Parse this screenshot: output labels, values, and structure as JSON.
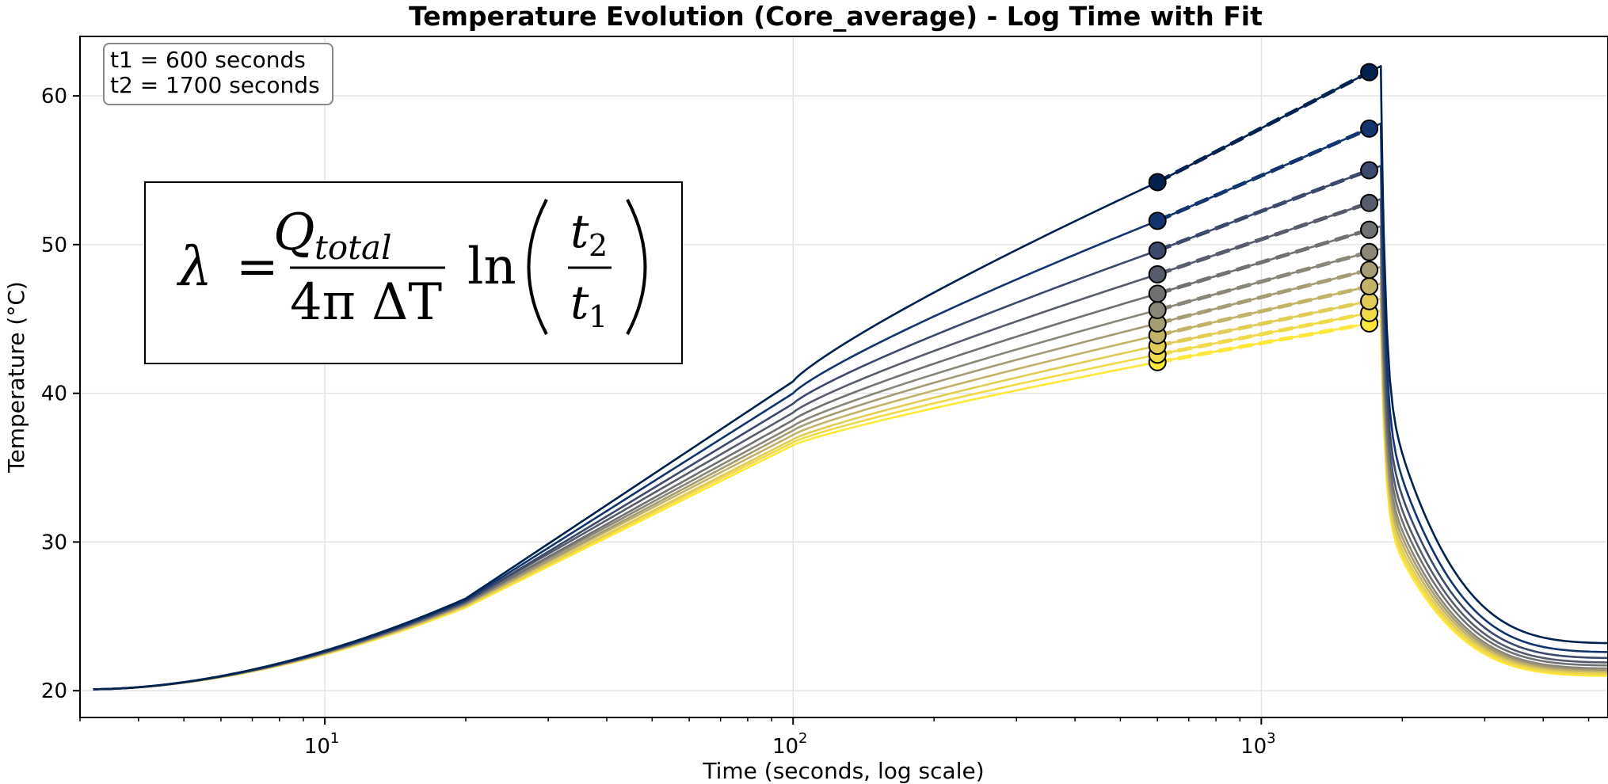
{
  "chart_data": {
    "type": "line",
    "title": "Temperature Evolution (Core_average) - Log Time with Fit",
    "xlabel": "Time (seconds, log scale)",
    "ylabel": "Temperature (°C)",
    "xscale": "log",
    "xlim": [
      3,
      5500
    ],
    "ylim": [
      18.2,
      64
    ],
    "x_ticks": [
      {
        "base": "10",
        "exp": "1",
        "value": 10
      },
      {
        "base": "10",
        "exp": "2",
        "value": 100
      },
      {
        "base": "10",
        "exp": "3",
        "value": 1000
      }
    ],
    "y_ticks": [
      20,
      30,
      40,
      50,
      60
    ],
    "grid": true,
    "legend": "none",
    "annotation_box": {
      "lines": [
        "t1 = 600 seconds",
        "t2 = 1700 seconds"
      ],
      "placement": "top-left"
    },
    "formula": {
      "lhs": "λ",
      "eq": "=",
      "num_var": "Q",
      "num_sub": "total",
      "den": "4π ΔT",
      "ln": "ln",
      "t2_var": "t",
      "t2_sub": "2",
      "t1_var": "t",
      "t1_sub": "1"
    },
    "t1": 600,
    "t2": 1700,
    "t_peak": 1800,
    "t_start": 3.2,
    "t_end": 5500,
    "T_start": 20.1,
    "series": [
      {
        "color": "#00224e",
        "T_t1": 54.2,
        "T_t2": 61.6,
        "T_end": 23.2,
        "T_at20": 26.2,
        "T_at100": 40.8,
        "fit": true
      },
      {
        "color": "#123570",
        "T_t1": 51.6,
        "T_t2": 57.8,
        "T_end": 22.6,
        "T_at20": 26.1,
        "T_at100": 40.0,
        "fit": true
      },
      {
        "color": "#3b496c",
        "T_t1": 49.6,
        "T_t2": 55.0,
        "T_end": 22.2,
        "T_at20": 26.0,
        "T_at100": 39.3,
        "fit": true
      },
      {
        "color": "#575c6d",
        "T_t1": 48.0,
        "T_t2": 52.8,
        "T_end": 21.9,
        "T_at20": 26.0,
        "T_at100": 38.7,
        "fit": true
      },
      {
        "color": "#707173",
        "T_t1": 46.7,
        "T_t2": 51.0,
        "T_end": 21.7,
        "T_at20": 25.9,
        "T_at100": 38.2,
        "fit": true
      },
      {
        "color": "#8a8779",
        "T_t1": 45.6,
        "T_t2": 49.5,
        "T_end": 21.5,
        "T_at20": 25.9,
        "T_at100": 37.8,
        "fit": true
      },
      {
        "color": "#a59c74",
        "T_t1": 44.7,
        "T_t2": 48.3,
        "T_end": 21.4,
        "T_at20": 25.8,
        "T_at100": 37.5,
        "fit": true
      },
      {
        "color": "#c3b369",
        "T_t1": 43.9,
        "T_t2": 47.2,
        "T_end": 21.3,
        "T_at20": 25.8,
        "T_at100": 37.2,
        "fit": true
      },
      {
        "color": "#e1cc55",
        "T_t1": 43.2,
        "T_t2": 46.2,
        "T_end": 21.2,
        "T_at20": 25.7,
        "T_at100": 36.9,
        "fit": true
      },
      {
        "color": "#f0da48",
        "T_t1": 42.6,
        "T_t2": 45.4,
        "T_end": 21.1,
        "T_at20": 25.7,
        "T_at100": 36.7,
        "fit": true
      },
      {
        "color": "#fee838",
        "T_t1": 42.1,
        "T_t2": 44.7,
        "T_end": 21.0,
        "T_at20": 25.6,
        "T_at100": 36.5,
        "fit": true
      }
    ]
  }
}
